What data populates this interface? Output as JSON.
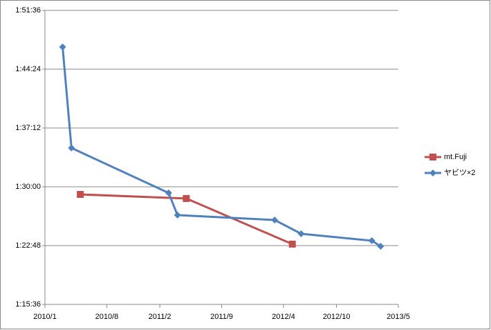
{
  "chart_data": {
    "type": "line",
    "xlim": [
      "2010/1",
      "2013/5"
    ],
    "xticks": [
      "2010/1",
      "2010/8",
      "2011/2",
      "2011/9",
      "2012/4",
      "2012/10",
      "2013/5"
    ],
    "ylim": [
      4536,
      6696
    ],
    "yticks": [
      {
        "value": 4536,
        "label": "1:15:36"
      },
      {
        "value": 4968,
        "label": "1:22:48"
      },
      {
        "value": 5400,
        "label": "1:30:00"
      },
      {
        "value": 5832,
        "label": "1:37:12"
      },
      {
        "value": 6264,
        "label": "1:44:24"
      },
      {
        "value": 6696,
        "label": "1:51:36"
      }
    ],
    "grid": true,
    "legend": "right",
    "series": [
      {
        "name": "mt.Fuji",
        "color": "#c0504d",
        "marker": "square",
        "x": [
          "2010/5",
          "2011/5",
          "2012/5"
        ],
        "values": [
          5344,
          5314,
          4979
        ]
      },
      {
        "name": "ヤビツ×2",
        "color": "#4f81bd",
        "marker": "diamond",
        "x": [
          "2010/3",
          "2010/4",
          "2011/3",
          "2011/4",
          "2012/3",
          "2012/6",
          "2013/2",
          "2013/3"
        ],
        "values": [
          6427,
          5685,
          5355,
          5192,
          5156,
          5055,
          5004,
          4963
        ]
      }
    ]
  }
}
